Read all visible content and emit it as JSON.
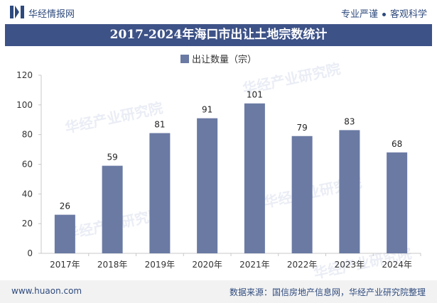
{
  "header": {
    "site_name": "华经情报网",
    "slogan_left": "专业严谨",
    "slogan_right": "客观科学"
  },
  "title": "2017-2024年海口市出让土地宗数统计",
  "legend_label": "出让数量（宗）",
  "chart_data": {
    "type": "bar",
    "title": "2017-2024年海口市出让土地宗数统计",
    "categories": [
      "2017年",
      "2018年",
      "2019年",
      "2020年",
      "2021年",
      "2022年",
      "2023年",
      "2024年"
    ],
    "series": [
      {
        "name": "出让数量（宗）",
        "values": [
          26,
          59,
          81,
          91,
          101,
          79,
          83,
          68
        ]
      }
    ],
    "ylim": [
      0,
      120
    ],
    "yticks": [
      0,
      20,
      40,
      60,
      80,
      100,
      120
    ],
    "bar_color": "#6a7aa3",
    "xlabel": "",
    "ylabel": ""
  },
  "footer": {
    "website": "www.huaon.com",
    "source": "数据来源：国信房地产信息网，华经产业研究院整理"
  },
  "colors": {
    "title_bg": "#3d5287",
    "brand_text": "#2e4a7d",
    "bar": "#6a7aa3"
  }
}
